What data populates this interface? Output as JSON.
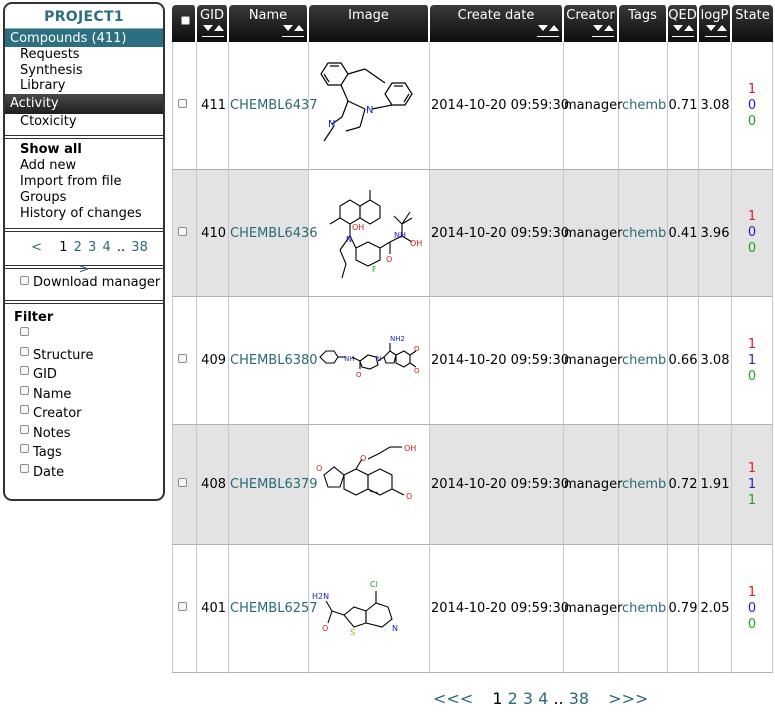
{
  "sidebar": {
    "project_title": "PROJECT1",
    "compounds_label": "Compounds (411)",
    "compound_subitems": [
      "Requests",
      "Synthesis",
      "Library"
    ],
    "activity_label": "Activity",
    "activity_subitems": [
      "Ctoxicity"
    ],
    "actions": [
      "Show all",
      "Add new",
      "Import from file",
      "Groups",
      "History of changes"
    ],
    "pager": {
      "prev": "<",
      "pages": [
        "1",
        "2",
        "3",
        "4"
      ],
      "ellipsis": "..",
      "last": "38",
      "next": ">"
    },
    "download_manager_label": "Download manager",
    "filter_title": "Filter",
    "filters": [
      "",
      "Structure",
      "GID",
      "Name",
      "Creator",
      "Notes",
      "Tags",
      "Date"
    ]
  },
  "table": {
    "headers": {
      "gid": "GID",
      "name": "Name",
      "image": "Image",
      "create_date": "Create date",
      "creator": "Creator",
      "tags": "Tags",
      "qed": "QED",
      "logp": "logP",
      "state": "State"
    },
    "rows": [
      {
        "gid": "411",
        "name": "CHEMBL6437",
        "image_icon": "molecule-structure-icon",
        "date": "2014-10-20 09:59:30",
        "creator": "manager",
        "tags": "chembl",
        "qed": "0.71",
        "logp": "3.08",
        "state": [
          "1",
          "0",
          "0"
        ]
      },
      {
        "gid": "410",
        "name": "CHEMBL6436",
        "image_icon": "molecule-structure-icon",
        "date": "2014-10-20 09:59:30",
        "creator": "manager",
        "tags": "chembl",
        "qed": "0.41",
        "logp": "3.96",
        "state": [
          "1",
          "0",
          "0"
        ]
      },
      {
        "gid": "409",
        "name": "CHEMBL6380",
        "image_icon": "molecule-structure-icon",
        "date": "2014-10-20 09:59:30",
        "creator": "manager",
        "tags": "chembl",
        "qed": "0.66",
        "logp": "3.08",
        "state": [
          "1",
          "1",
          "0"
        ]
      },
      {
        "gid": "408",
        "name": "CHEMBL6379",
        "image_icon": "molecule-structure-icon",
        "date": "2014-10-20 09:59:30",
        "creator": "manager",
        "tags": "chembl",
        "qed": "0.72",
        "logp": "1.91",
        "state": [
          "1",
          "1",
          "1"
        ]
      },
      {
        "gid": "401",
        "name": "CHEMBL6257",
        "image_icon": "molecule-structure-icon",
        "date": "2014-10-20 09:59:30",
        "creator": "manager",
        "tags": "chembl",
        "qed": "0.79",
        "logp": "2.05",
        "state": [
          "1",
          "0",
          "0"
        ]
      }
    ],
    "molecule_labels": {
      "m410": {
        "oh": "OH",
        "nh": "NH",
        "oh2": "OH",
        "o": "O",
        "f": "F",
        "n": "N"
      },
      "m409": {
        "nh2": "NH2",
        "nh": "NH",
        "o": "O",
        "o2": "O",
        "o3": "O",
        "n": "N"
      },
      "m408": {
        "oh": "OH",
        "o": "O",
        "o2": "O",
        "o3": "O"
      },
      "m401": {
        "cl": "Cl",
        "h2n": "H2N",
        "o": "O",
        "s": "S",
        "n": "N"
      },
      "m411": {
        "n1": "N",
        "n2": "N"
      }
    }
  },
  "bottom_pager": {
    "first": "<<<",
    "pages": [
      "1",
      "2",
      "3",
      "4"
    ],
    "ellipsis": "..",
    "last": "38",
    "next": ">>>"
  },
  "colors": {
    "accent": "#2b6f80",
    "link": "#2a6a78",
    "header_bg": "#1a1a1a",
    "row_alt": "#e3e3e3",
    "state_colors": [
      "#dd2020",
      "#2020dd",
      "#20a020"
    ]
  }
}
